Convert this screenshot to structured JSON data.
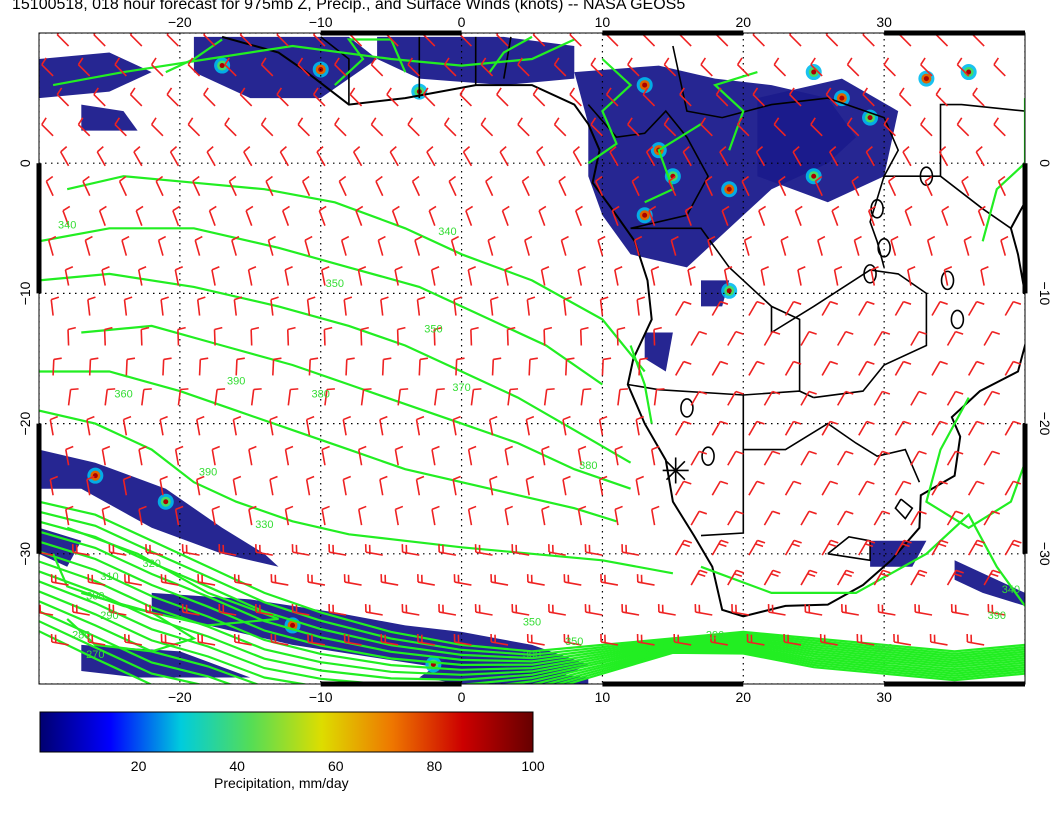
{
  "title": "15100518, 018 hour forecast for 975mb Z, Precip., and Surface Winds (knots) -- NASA GEOS5",
  "map": {
    "lon_range": [
      -30,
      40
    ],
    "lat_range": [
      -40,
      10
    ],
    "lon_ticks": [
      -20,
      -10,
      0,
      10,
      20,
      30
    ],
    "lat_ticks": [
      0,
      -10,
      -20,
      -30
    ],
    "contour_color": "#22ee22",
    "barb_color": "#ee2222",
    "precip_color_low": "#1a1a8c",
    "coast_color": "#000000",
    "contour_labels": [
      "340",
      "340",
      "350",
      "350",
      "360",
      "370",
      "380",
      "390",
      "330",
      "320",
      "310",
      "300",
      "290",
      "280",
      "270",
      "380",
      "390",
      "350",
      "290",
      "300",
      "350",
      "360",
      "390",
      "340"
    ],
    "marker": {
      "lon": 15.2,
      "lat": -23.6,
      "symbol": "asterisk"
    }
  },
  "colorbar": {
    "label": "Precipitation, mm/day",
    "min": 0,
    "max": 100,
    "ticks": [
      "20",
      "40",
      "60",
      "80",
      "100"
    ],
    "colors": [
      "#000070",
      "#0000ff",
      "#00ccdd",
      "#55dd55",
      "#dddd00",
      "#ee7700",
      "#cc0000",
      "#660000"
    ]
  }
}
